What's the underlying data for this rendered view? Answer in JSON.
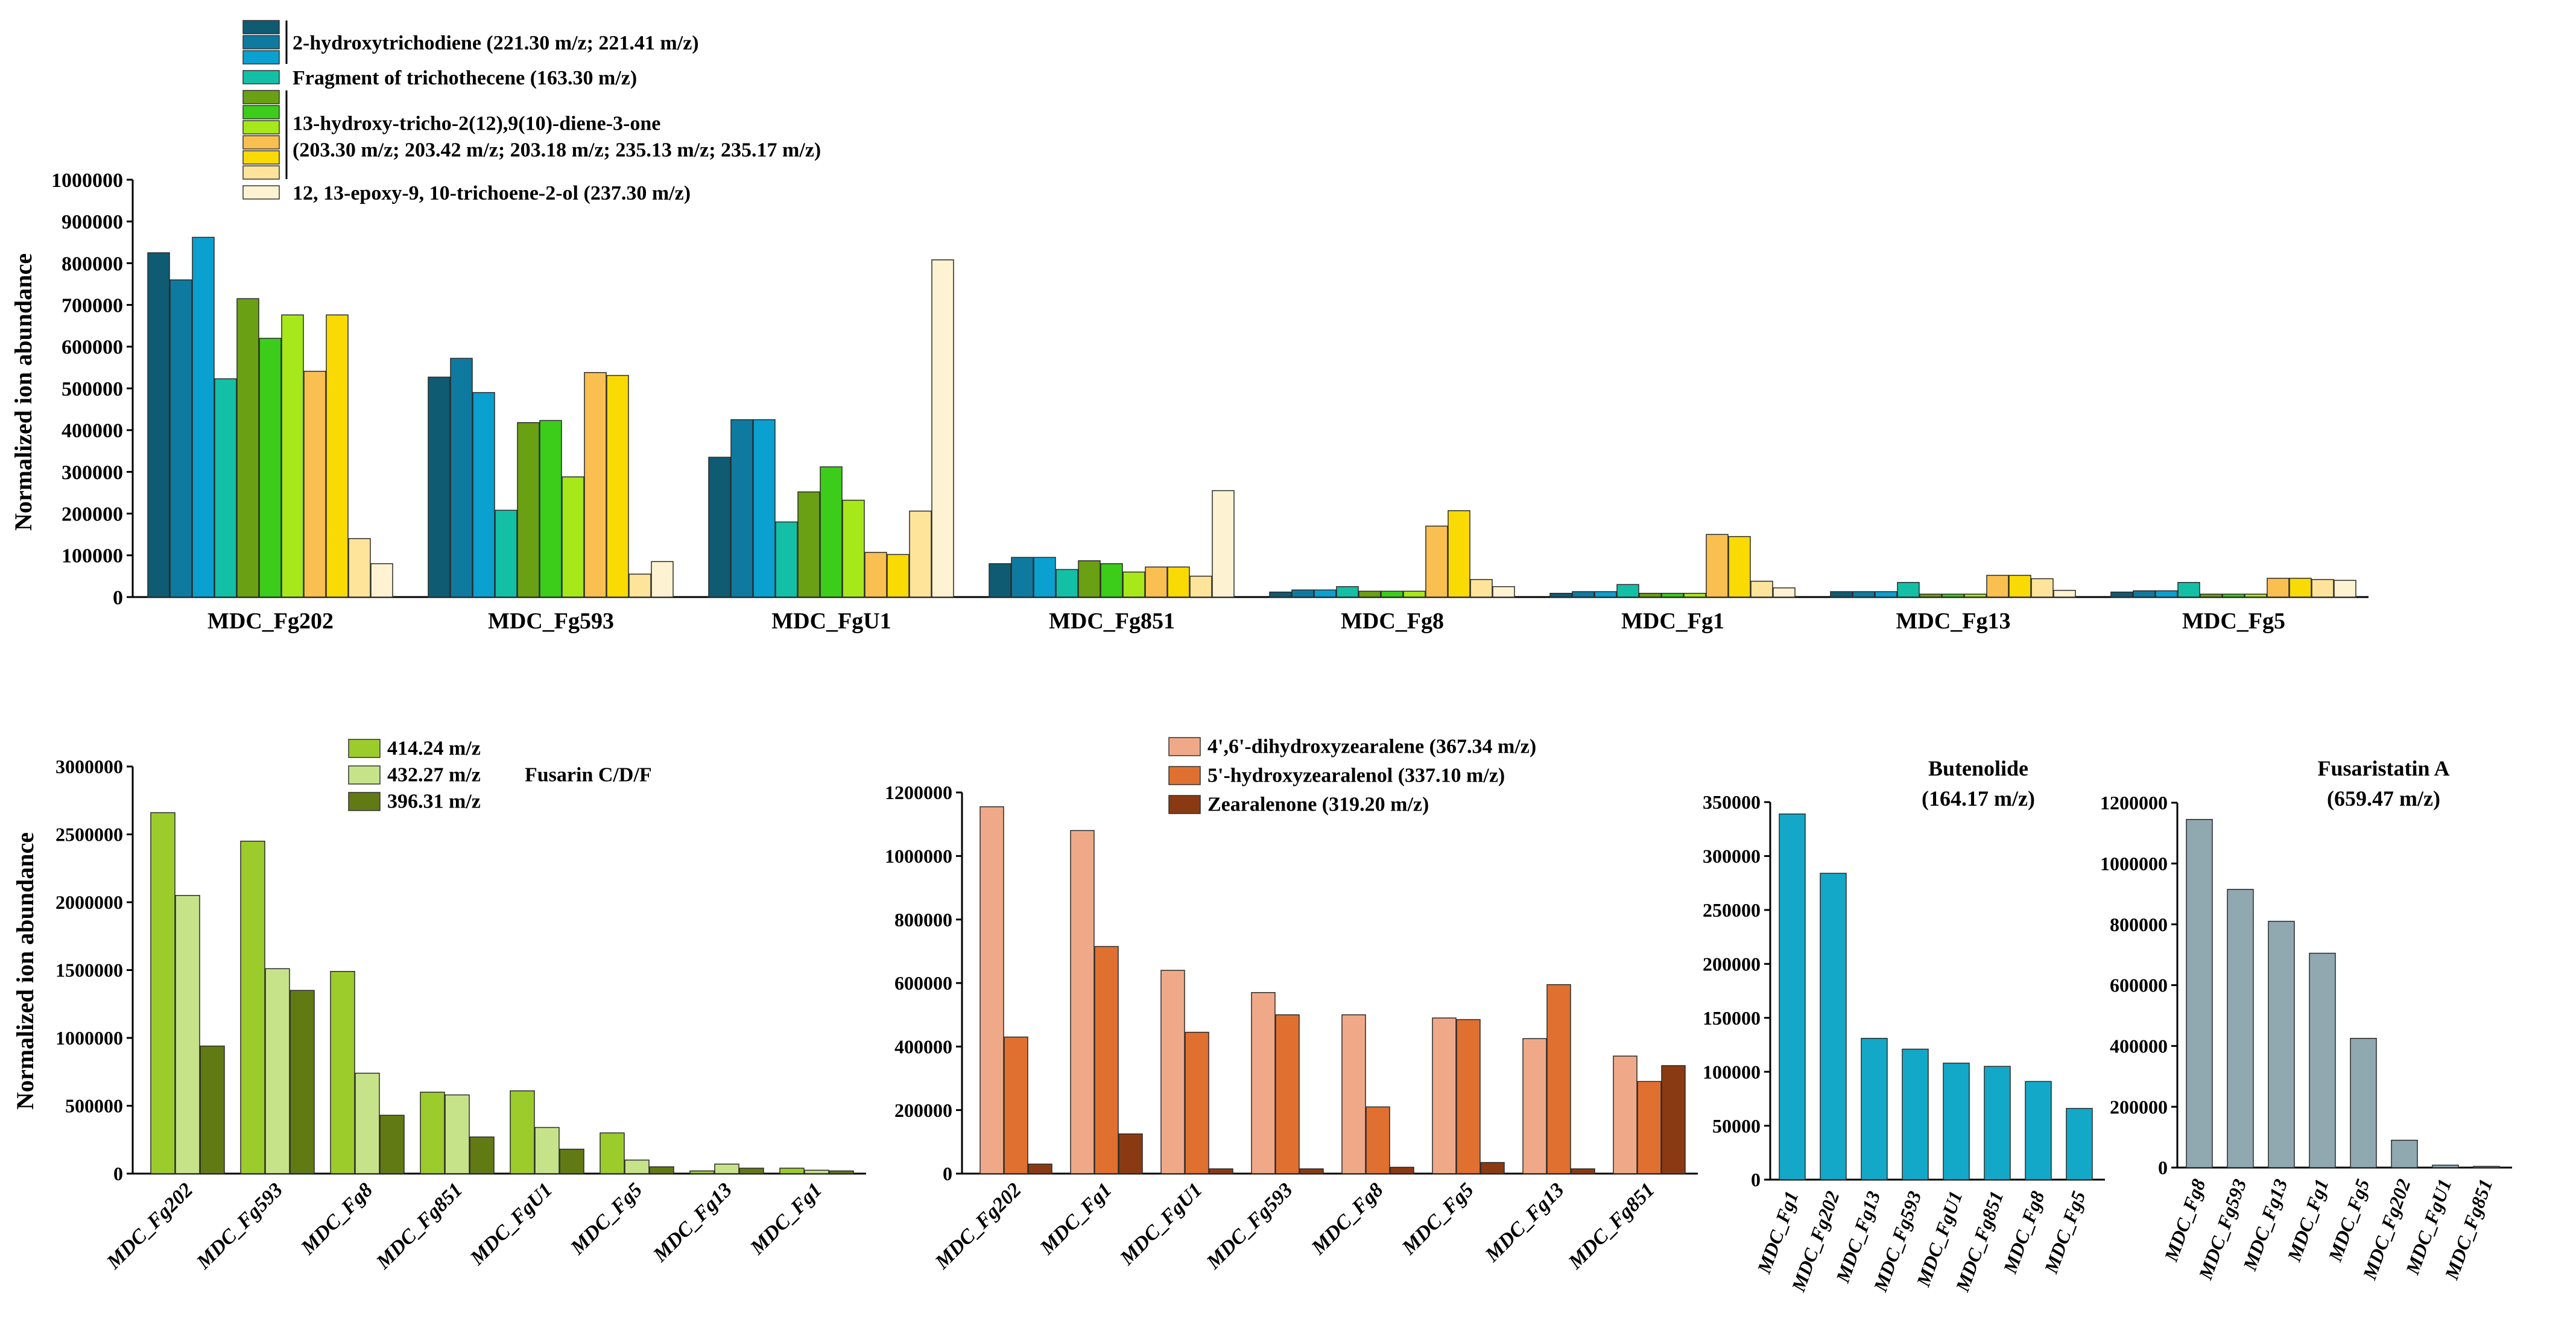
{
  "chart_data": [
    {
      "type": "bar",
      "ylabel": "Normalized ion abundance",
      "ylim": [
        0,
        1000000
      ],
      "yticks": [
        0,
        100000,
        200000,
        300000,
        400000,
        500000,
        600000,
        700000,
        800000,
        900000,
        1000000
      ],
      "categories": [
        "MDC_Fg202",
        "MDC_Fg593",
        "MDC_FgU1",
        "MDC_Fg851",
        "MDC_Fg8",
        "MDC_Fg1",
        "MDC_Fg13",
        "MDC_Fg5"
      ],
      "series": [
        {
          "color": "#0f5b72",
          "values": [
            825000,
            527000,
            335000,
            80000,
            12000,
            9000,
            13000,
            12000
          ]
        },
        {
          "color": "#0f7aa0",
          "values": [
            760000,
            572000,
            425000,
            95000,
            17000,
            13000,
            13000,
            15000
          ]
        },
        {
          "color": "#0aa0d0",
          "values": [
            862000,
            490000,
            425000,
            95000,
            17000,
            13000,
            13000,
            15000
          ]
        },
        {
          "color": "#13c0a6",
          "values": [
            523000,
            208000,
            180000,
            66000,
            25000,
            30000,
            35000,
            35000
          ]
        },
        {
          "color": "#6aa013",
          "values": [
            715000,
            418000,
            252000,
            87000,
            14000,
            9000,
            7000,
            7000
          ]
        },
        {
          "color": "#3ccc1a",
          "values": [
            620000,
            423000,
            312000,
            80000,
            14000,
            9000,
            7000,
            7000
          ]
        },
        {
          "color": "#a6e81a",
          "values": [
            676000,
            288000,
            232000,
            60000,
            14000,
            9000,
            7000,
            7000
          ]
        },
        {
          "color": "#f9bf51",
          "values": [
            541000,
            538000,
            107000,
            72000,
            170000,
            150000,
            52000,
            45000
          ]
        },
        {
          "color": "#f9da02",
          "values": [
            676000,
            531000,
            102000,
            72000,
            207000,
            145000,
            52000,
            45000
          ]
        },
        {
          "color": "#fde49a",
          "values": [
            140000,
            55000,
            206000,
            50000,
            42000,
            38000,
            44000,
            42000
          ]
        },
        {
          "color": "#fdf3d2",
          "values": [
            80000,
            85000,
            808000,
            255000,
            25000,
            22000,
            16000,
            40000
          ]
        }
      ],
      "legend": {
        "placement": "top-left",
        "groups": [
          {
            "label": "2-hydroxytrichodiene (221.30 m/z; 221.41 m/z)",
            "colors": [
              "#0f5b72",
              "#0f7aa0",
              "#0aa0d0"
            ]
          },
          {
            "label": "Fragment of trichothecene (163.30 m/z)",
            "colors": [
              "#13c0a6"
            ]
          },
          {
            "label": "13-hydroxy-tricho-2(12),9(10)-diene-3-one",
            "label2": "(203.30 m/z; 203.42 m/z; 203.18 m/z; 235.13 m/z; 235.17 m/z)",
            "colors": [
              "#6aa013",
              "#3ccc1a",
              "#a6e81a",
              "#f9bf51",
              "#f9da02",
              "#fde49a"
            ]
          },
          {
            "label": "12, 13-epoxy-9, 10-trichoene-2-ol (237.30 m/z)",
            "colors": [
              "#fdf3d2"
            ]
          }
        ]
      }
    },
    {
      "type": "bar",
      "ylabel": "Normalized ion abundance",
      "ylim": [
        0,
        3000000
      ],
      "yticks": [
        0,
        500000,
        1000000,
        1500000,
        2000000,
        2500000,
        3000000
      ],
      "categories": [
        "MDC_Fg202",
        "MDC_Fg593",
        "MDC_Fg8",
        "MDC_Fg851",
        "MDC_FgU1",
        "MDC_Fg5",
        "MDC_Fg13",
        "MDC_Fg1"
      ],
      "series": [
        {
          "name": "414.24 m/z",
          "color": "#9ccb2c",
          "values": [
            2660000,
            2450000,
            1490000,
            600000,
            610000,
            300000,
            20000,
            40000
          ]
        },
        {
          "name": "432.27 m/z",
          "color": "#c6e38a",
          "values": [
            2050000,
            1510000,
            740000,
            580000,
            340000,
            100000,
            70000,
            25000
          ]
        },
        {
          "name": "396.31 m/z",
          "color": "#617a14",
          "values": [
            940000,
            1350000,
            430000,
            270000,
            180000,
            50000,
            40000,
            20000
          ]
        }
      ],
      "legend_note": "Fusarin C/D/F"
    },
    {
      "type": "bar",
      "ylim": [
        0,
        1200000
      ],
      "yticks": [
        0,
        200000,
        400000,
        600000,
        800000,
        1000000,
        1200000
      ],
      "categories": [
        "MDC_Fg202",
        "MDC_Fg1",
        "MDC_FgU1",
        "MDC_Fg593",
        "MDC_Fg8",
        "MDC_Fg5",
        "MDC_Fg13",
        "MDC_Fg851"
      ],
      "series": [
        {
          "name": "4',6'-dihydroxyzearalene (367.34 m/z)",
          "color": "#f0a988",
          "values": [
            1155000,
            1080000,
            640000,
            570000,
            500000,
            490000,
            425000,
            370000
          ]
        },
        {
          "name": "5'-hydroxyzearalenol (337.10 m/z)",
          "color": "#e07030",
          "values": [
            430000,
            715000,
            445000,
            500000,
            210000,
            485000,
            595000,
            290000
          ]
        },
        {
          "name": "Zearalenone (319.20 m/z)",
          "color": "#8a3a12",
          "values": [
            30000,
            125000,
            15000,
            15000,
            20000,
            35000,
            15000,
            340000
          ]
        }
      ]
    },
    {
      "type": "bar",
      "title": "Butenolide",
      "subtitle": "(164.17 m/z)",
      "ylim": [
        0,
        350000
      ],
      "yticks": [
        0,
        50000,
        100000,
        150000,
        200000,
        250000,
        300000,
        350000
      ],
      "categories": [
        "MDC_Fg1",
        "MDC_Fg202",
        "MDC_Fg13",
        "MDC_Fg593",
        "MDC_FgU1",
        "MDC_Fg851",
        "MDC_Fg8",
        "MDC_Fg5"
      ],
      "series": [
        {
          "color": "#13a8c8",
          "values": [
            339000,
            284000,
            131000,
            121000,
            108000,
            105000,
            91000,
            66000
          ]
        }
      ]
    },
    {
      "type": "bar",
      "title": "Fusaristatin A",
      "subtitle": "(659.47 m/z)",
      "ylim": [
        0,
        1200000
      ],
      "yticks": [
        0,
        200000,
        400000,
        600000,
        800000,
        1000000,
        1200000
      ],
      "categories": [
        "MDC_Fg8",
        "MDC_Fg593",
        "MDC_Fg13",
        "MDC_Fg1",
        "MDC_Fg5",
        "MDC_Fg202",
        "MDC_FgU1",
        "MDC_Fg851"
      ],
      "series": [
        {
          "color": "#90a8b0",
          "values": [
            1145000,
            915000,
            810000,
            705000,
            425000,
            90000,
            8000,
            4000
          ]
        }
      ]
    }
  ]
}
